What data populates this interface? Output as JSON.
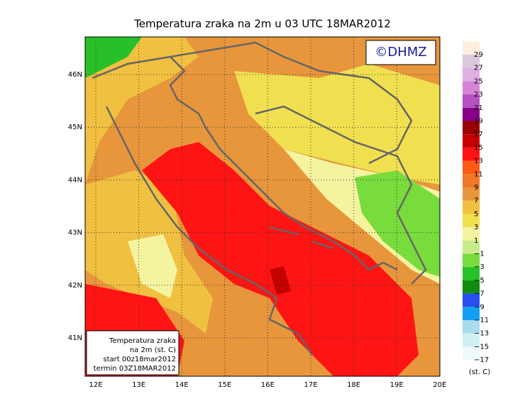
{
  "header": {
    "title": "Temperatura zraka na 2m u 03 UTC 18MAR2012",
    "logo": "©DHMZ"
  },
  "map": {
    "lon_labels": [
      "12E",
      "13E",
      "14E",
      "15E",
      "16E",
      "17E",
      "18E",
      "19E",
      "20E"
    ],
    "lat_labels": [
      "46N",
      "45N",
      "44N",
      "43N",
      "42N",
      "41N"
    ]
  },
  "caption": {
    "lines": [
      "Temperatura zraka",
      "na 2m (st. C)",
      "start 00z18mar2012",
      "termin 03Z18MAR2012"
    ]
  },
  "legend": {
    "labels": [
      "29",
      "27",
      "25",
      "23",
      "21",
      "19",
      "17",
      "15",
      "13",
      "11",
      "9",
      "7",
      "5",
      "3",
      "1",
      "−1",
      "−3",
      "−5",
      "−7",
      "−9",
      "−11",
      "−13",
      "−15",
      "−17"
    ],
    "colors": [
      "#fdeee0",
      "#dcc8dc",
      "#e2b0e2",
      "#d684d6",
      "#b450c0",
      "#880088",
      "#9a0000",
      "#c40000",
      "#ff1414",
      "#ff5a14",
      "#f07828",
      "#e8963c",
      "#f0c040",
      "#f0e050",
      "#f4f4a0",
      "#c8ec8c",
      "#78dc3c",
      "#28c028",
      "#108c10",
      "#2850f0",
      "#14a0f0",
      "#a8dcf0",
      "#d0f0f4",
      "#eefafa",
      "#ffffff"
    ],
    "unit": "(st. C)"
  }
}
